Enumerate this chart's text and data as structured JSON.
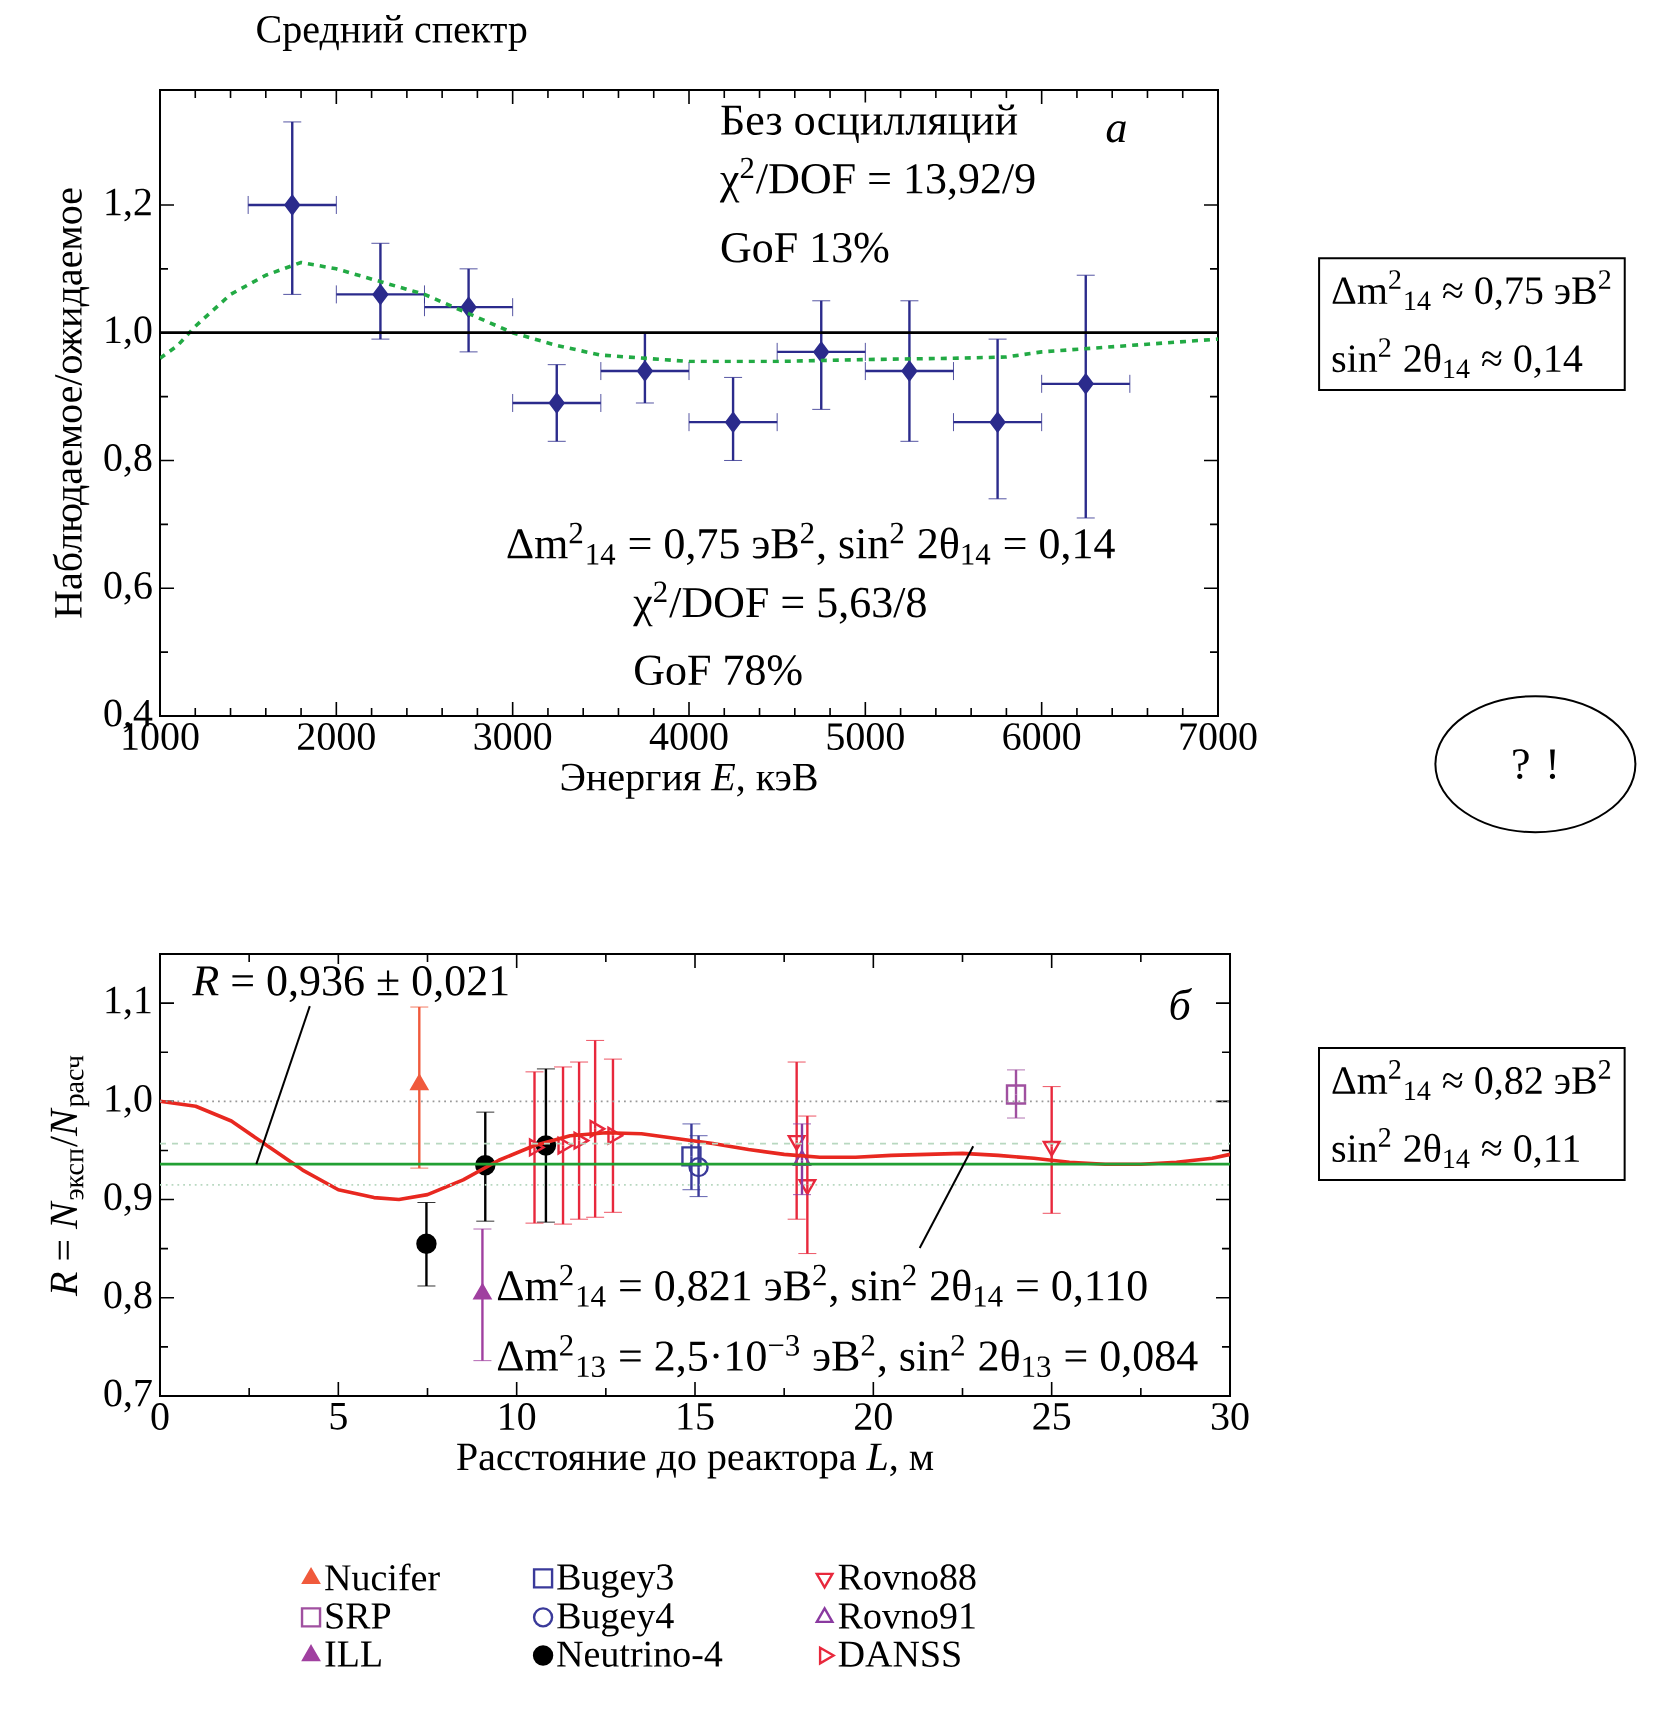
{
  "chart_data": [
    {
      "type": "scatter",
      "title": "Средний спектр",
      "xlabel": "Энергия *E*, кэВ",
      "ylabel": "Наблюдаемое/ожидаемое",
      "xlim": [
        1000,
        7000
      ],
      "xticks": [
        1000,
        2000,
        3000,
        4000,
        5000,
        6000,
        7000
      ],
      "ylim": [
        0.4,
        1.38
      ],
      "yticks": [
        {
          "value": 0.4,
          "label": "0,4"
        },
        {
          "value": 0.6,
          "label": "0,6"
        },
        {
          "value": 0.8,
          "label": "0,8"
        },
        {
          "value": 1.0,
          "label": "1,0"
        },
        {
          "value": 1.2,
          "label": "1,2"
        }
      ],
      "series": [
        {
          "type": "scatter",
          "color": "#2b2b8c",
          "marker": "diamond",
          "x": [
            1750,
            2250,
            2750,
            3250,
            3750,
            4250,
            4750,
            5250,
            5750,
            6250
          ],
          "values": [
            1.2,
            1.06,
            1.04,
            0.89,
            0.94,
            0.86,
            0.97,
            0.94,
            0.86,
            0.92
          ],
          "errors": [
            [
              1.06,
              1.33
            ],
            [
              0.99,
              1.14
            ],
            [
              0.97,
              1.1
            ],
            [
              0.83,
              0.95
            ],
            [
              0.89,
              1.0
            ],
            [
              0.8,
              0.93
            ],
            [
              0.88,
              1.05
            ],
            [
              0.83,
              1.05
            ],
            [
              0.74,
              0.99
            ],
            [
              0.71,
              1.09
            ]
          ],
          "xerrors": [
            250,
            250,
            250,
            250,
            250,
            250,
            250,
            250,
            250,
            250
          ]
        },
        {
          "type": "line",
          "color": "#22aa44",
          "line_style": "dashed",
          "x": [
            1000,
            1100,
            1200,
            1400,
            1600,
            1800,
            2000,
            2250,
            2500,
            2750,
            3000,
            3250,
            3500,
            4000,
            4500,
            5000,
            5500,
            5800,
            6000,
            6500,
            7000
          ],
          "values": [
            0.96,
            0.98,
            1.01,
            1.06,
            1.09,
            1.11,
            1.1,
            1.08,
            1.06,
            1.03,
            1.0,
            0.98,
            0.965,
            0.955,
            0.955,
            0.958,
            0.96,
            0.962,
            0.97,
            0.98,
            0.99
          ]
        }
      ],
      "ref_lines": [
        {
          "axis": "y",
          "value": 1.0,
          "color": "#000000",
          "line_style": "solid"
        }
      ],
      "annotations": [
        "Без осцилляций",
        "χ$^{2}$/DOF = 13,92/9",
        "GoF 13%",
        "Δm$^{2}$$_{14}$ = 0,75 эВ$^{2}$, sin$^{2}$ 2θ$_{14}$ = 0,14",
        "χ$^{2}$/DOF = 5,63/8",
        "GoF 78%",
        "а",
        "Δm$^{2}$$_{14}$ ≈ 0,75 эВ$^{2}$",
        "sin$^{2}$ 2θ$_{14}$ ≈ 0,14",
        "? !"
      ]
    },
    {
      "type": "scatter",
      "xlabel": "Расстояние до реактора *L*, м",
      "ylabel": "*R* = *N*$_{эксп}$/*N*$_{расч}$",
      "xlim": [
        0,
        30
      ],
      "xticks": [
        0,
        5,
        10,
        15,
        20,
        25,
        30
      ],
      "ylim": [
        0.7,
        1.15
      ],
      "yticks": [
        {
          "value": 0.7,
          "label": "0,7"
        },
        {
          "value": 0.8,
          "label": "0,8"
        },
        {
          "value": 0.9,
          "label": "0,9"
        },
        {
          "value": 1.0,
          "label": "1,0"
        },
        {
          "value": 1.1,
          "label": "1,1"
        }
      ],
      "legend": "bottom",
      "series": [
        {
          "name": "Nucifer",
          "color": "#f05a3c",
          "marker": "triangle",
          "x": [
            7.27
          ],
          "values": [
            1.017
          ],
          "errors": [
            [
              0.932,
              1.096
            ]
          ]
        },
        {
          "name": "Bugey3",
          "color": "#3a3a9a",
          "marker": "square",
          "x": [
            14.9
          ],
          "values": [
            0.944
          ],
          "errors": [
            [
              0.91,
              0.977
            ]
          ]
        },
        {
          "name": "Rovno88",
          "color": "#e8283c",
          "marker": "triangle-down-open",
          "x": [
            17.85,
            18.15,
            25
          ],
          "values": [
            0.96,
            0.915,
            0.954
          ],
          "errors": [
            0.08,
            0.07,
            [
              0.886,
              1.015
            ]
          ]
        },
        {
          "name": "SRP",
          "color": "#a050a0",
          "marker": "square",
          "x": [
            24
          ],
          "values": [
            1.007
          ],
          "errors": [
            [
              0.983,
              1.032
            ]
          ]
        },
        {
          "name": "Bugey4",
          "color": "#3a3a9a",
          "marker": "circle-open",
          "x": [
            15.1
          ],
          "values": [
            0.933
          ],
          "errors": [
            [
              0.903,
              0.965
            ]
          ]
        },
        {
          "name": "Rovno91",
          "color": "#8a3aa0",
          "marker": "triangle-open",
          "x": [
            18
          ],
          "values": [
            0.94
          ],
          "errors": [
            [
              0.905,
              0.977
            ]
          ]
        },
        {
          "name": "ILL",
          "color": "#a040a0",
          "marker": "triangle",
          "x": [
            9.04
          ],
          "values": [
            0.804
          ],
          "errors": [
            [
              0.736,
              0.87
            ]
          ]
        },
        {
          "name": "Neutrino-4",
          "color": "#000000",
          "marker": "circle",
          "x": [
            7.47,
            9.12,
            10.82
          ],
          "values": [
            0.855,
            0.935,
            0.955
          ],
          "errors": [
            [
              0.812,
              0.897
            ],
            [
              0.878,
              0.989
            ],
            [
              0.877,
              1.033
            ]
          ]
        },
        {
          "name": "DANSS",
          "color": "#e8283c",
          "marker": "triangle-right-open",
          "x": [
            10.5,
            11.3,
            11.75,
            12.2,
            12.7
          ],
          "values": [
            0.953,
            0.955,
            0.96,
            0.972,
            0.965
          ],
          "errors": [
            0.077,
            0.08,
            0.08,
            0.09,
            0.078
          ]
        },
        {
          "type": "line",
          "color": "#e82820",
          "line_style": "solid",
          "x": [
            0,
            1,
            2,
            3,
            4,
            5,
            6,
            6.7,
            7.5,
            8.5,
            9.5,
            10.5,
            11.5,
            12.5,
            13.5,
            14.5,
            15.5,
            16.5,
            17.5,
            18.5,
            19.5,
            20.5,
            21.5,
            22.5,
            23.5,
            24.5,
            25.5,
            26.5,
            27.5,
            28.5,
            29.5,
            30
          ],
          "values": [
            1.0,
            0.995,
            0.98,
            0.955,
            0.93,
            0.91,
            0.902,
            0.9,
            0.905,
            0.92,
            0.94,
            0.955,
            0.965,
            0.968,
            0.967,
            0.962,
            0.957,
            0.951,
            0.946,
            0.943,
            0.943,
            0.945,
            0.946,
            0.947,
            0.945,
            0.942,
            0.938,
            0.936,
            0.936,
            0.938,
            0.942,
            0.946
          ]
        }
      ],
      "ref_lines": [
        {
          "axis": "y",
          "value": 1.0,
          "color": "#999999",
          "line_style": "dotted"
        },
        {
          "axis": "y",
          "value": 0.957,
          "color": "#b8d8c0",
          "line_style": "dashed"
        },
        {
          "axis": "y",
          "value": 0.936,
          "color": "#22a033",
          "line_style": "solid"
        },
        {
          "axis": "y",
          "value": 0.915,
          "color": "#b8d8c0",
          "line_style": "dotted"
        }
      ],
      "annotations": [
        {
          "text": "*R* = 0,936 ± 0,021",
          "x": 2.7,
          "y": 0.936
        },
        "Δm$^{2}$$_{14}$ = 0,821 эВ$^{2}$, sin$^{2}$ 2θ$_{14}$ = 0,110",
        "Δm$^{2}$$_{13}$ = 2,5·10$^{−3}$ эВ$^{2}$, sin$^{2}$ 2θ$_{13}$ = 0,084",
        "б",
        "Δm$^{2}$$_{14}$ ≈ 0,82 эВ$^{2}$",
        "sin$^{2}$ 2θ$_{14}$ ≈ 0,11"
      ]
    }
  ]
}
